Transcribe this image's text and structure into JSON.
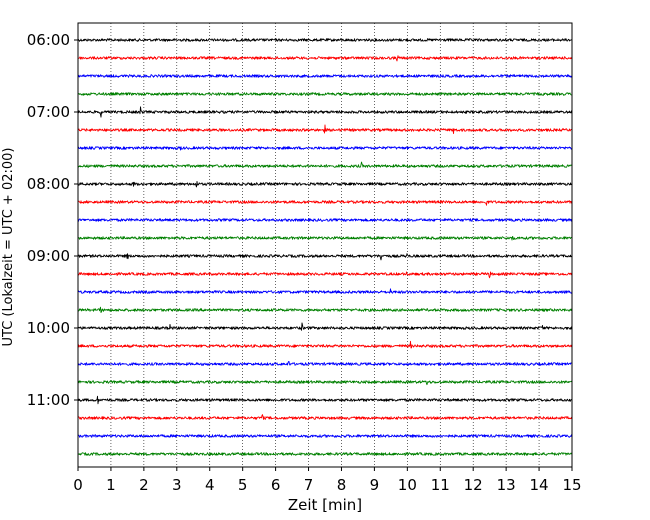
{
  "chart_data": {
    "type": "line",
    "xlabel": "Zeit  [min]",
    "ylabel": "UTC (Lokalzeit = UTC + 02:00)",
    "xlim": [
      0,
      15
    ],
    "x_ticks": [
      "0",
      "1",
      "2",
      "3",
      "4",
      "5",
      "6",
      "7",
      "8",
      "9",
      "10",
      "11",
      "12",
      "13",
      "14",
      "15"
    ],
    "y_ticks": [
      "06:00",
      "07:00",
      "08:00",
      "09:00",
      "10:00",
      "11:00"
    ],
    "grid": "vertical dotted lines at each minute",
    "trace_interval_minutes": 15,
    "trace_colors": [
      "#000000",
      "#ff0000",
      "#0000ff",
      "#008000"
    ],
    "rows": [
      {
        "start": "06:00",
        "color": "#000000",
        "events": []
      },
      {
        "start": "06:15",
        "color": "#ff0000",
        "events": [
          9.7
        ]
      },
      {
        "start": "06:30",
        "color": "#0000ff",
        "events": []
      },
      {
        "start": "06:45",
        "color": "#008000",
        "events": []
      },
      {
        "start": "07:00",
        "color": "#000000",
        "events": [
          0.7,
          1.9
        ]
      },
      {
        "start": "07:15",
        "color": "#ff0000",
        "events": [
          7.5,
          11.4
        ]
      },
      {
        "start": "07:30",
        "color": "#0000ff",
        "events": [
          3.1
        ]
      },
      {
        "start": "07:45",
        "color": "#008000",
        "events": [
          8.6
        ]
      },
      {
        "start": "08:00",
        "color": "#000000",
        "events": [
          1.7,
          2.3,
          3.6
        ]
      },
      {
        "start": "08:15",
        "color": "#ff0000",
        "events": [
          12.4
        ]
      },
      {
        "start": "08:30",
        "color": "#0000ff",
        "events": []
      },
      {
        "start": "08:45",
        "color": "#008000",
        "events": [
          13.2
        ]
      },
      {
        "start": "09:00",
        "color": "#000000",
        "events": [
          1.5,
          9.2,
          10.0
        ]
      },
      {
        "start": "09:15",
        "color": "#ff0000",
        "events": [
          10.0,
          12.5
        ]
      },
      {
        "start": "09:30",
        "color": "#0000ff",
        "events": [
          9.5
        ]
      },
      {
        "start": "09:45",
        "color": "#008000",
        "events": [
          0.7
        ]
      },
      {
        "start": "10:00",
        "color": "#000000",
        "events": [
          2.8,
          6.8,
          14.1
        ]
      },
      {
        "start": "10:15",
        "color": "#ff0000",
        "events": [
          10.1
        ]
      },
      {
        "start": "10:30",
        "color": "#0000ff",
        "events": [
          6.4
        ]
      },
      {
        "start": "10:45",
        "color": "#008000",
        "events": [
          10.6
        ]
      },
      {
        "start": "11:00",
        "color": "#000000",
        "events": [
          0.6
        ]
      },
      {
        "start": "11:15",
        "color": "#ff0000",
        "events": [
          5.6
        ]
      },
      {
        "start": "11:30",
        "color": "#0000ff",
        "events": []
      },
      {
        "start": "11:45",
        "color": "#008000",
        "events": []
      }
    ]
  }
}
